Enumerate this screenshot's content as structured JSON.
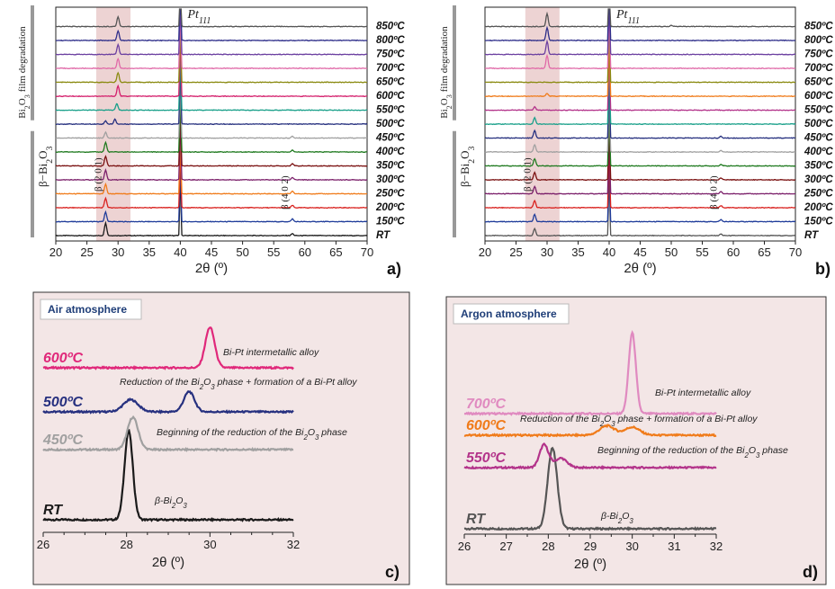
{
  "figure": {
    "panel_labels": [
      "a)",
      "b)",
      "c)",
      "d)"
    ],
    "pt_label": "Pt",
    "pt_sub": "111",
    "peak_label_201": "β (2 0 1)",
    "peak_label_402": "β (4 0 2)",
    "degradation_label": "Bi2O3 film degradation",
    "beta_phase_label": "β−Bi2O3",
    "xlabel": "2θ (º)",
    "colors": {
      "highlight": "#e8c8c8",
      "inset_bg": "#f3e6e6",
      "bar": "#999999"
    }
  },
  "chart_data": [
    {
      "id": "a",
      "type": "line",
      "xlabel": "2θ (º)",
      "xlim": [
        20,
        70
      ],
      "xticks": [
        20,
        25,
        30,
        35,
        40,
        45,
        50,
        55,
        60,
        65,
        70
      ],
      "highlight_range": [
        26.5,
        32
      ],
      "series": [
        {
          "name": "RT",
          "color": "#1a1a1a",
          "peaks": [
            [
              28.0,
              1.6
            ],
            [
              40.0,
              9
            ],
            [
              58.0,
              0.25
            ]
          ]
        },
        {
          "name": "150ºC",
          "color": "#1f3c9a",
          "peaks": [
            [
              28.0,
              1.2
            ],
            [
              40.0,
              9
            ],
            [
              58.0,
              0.35
            ]
          ]
        },
        {
          "name": "200ºC",
          "color": "#d9211e",
          "peaks": [
            [
              28.0,
              1.2
            ],
            [
              40.0,
              9
            ],
            [
              58.0,
              0.3
            ]
          ]
        },
        {
          "name": "250ºC",
          "color": "#f07b1a",
          "peaks": [
            [
              28.0,
              1.2
            ],
            [
              40.0,
              9
            ],
            [
              58.0,
              0.3
            ]
          ]
        },
        {
          "name": "300ºC",
          "color": "#7b1f6a",
          "peaks": [
            [
              28.0,
              1.2
            ],
            [
              40.0,
              9
            ],
            [
              58.0,
              0.3
            ]
          ]
        },
        {
          "name": "350ºC",
          "color": "#7a1010",
          "peaks": [
            [
              28.0,
              1.2
            ],
            [
              40.0,
              9
            ],
            [
              58.0,
              0.3
            ]
          ]
        },
        {
          "name": "400ºC",
          "color": "#1f7a1f",
          "peaks": [
            [
              28.0,
              1.2
            ],
            [
              40.0,
              9
            ],
            [
              58.0,
              0.25
            ]
          ]
        },
        {
          "name": "450ºC",
          "color": "#a0a0a0",
          "peaks": [
            [
              28.0,
              0.7
            ],
            [
              40.0,
              9
            ],
            [
              58.0,
              0.2
            ]
          ]
        },
        {
          "name": "500ºC",
          "color": "#26307f",
          "peaks": [
            [
              28.0,
              0.4
            ],
            [
              29.5,
              0.6
            ],
            [
              40.0,
              9
            ]
          ]
        },
        {
          "name": "550ºC",
          "color": "#1aa08a",
          "peaks": [
            [
              29.8,
              0.8
            ],
            [
              40.0,
              9
            ]
          ]
        },
        {
          "name": "600ºC",
          "color": "#d41f6c",
          "peaks": [
            [
              30.0,
              1.3
            ],
            [
              40.0,
              9
            ]
          ]
        },
        {
          "name": "650ºC",
          "color": "#8a8a10",
          "peaks": [
            [
              30.0,
              1.2
            ],
            [
              40.0,
              9
            ]
          ]
        },
        {
          "name": "700ºC",
          "color": "#e06aa8",
          "peaks": [
            [
              30.0,
              1.2
            ],
            [
              40.0,
              9
            ]
          ]
        },
        {
          "name": "750ºC",
          "color": "#6b3fa0",
          "peaks": [
            [
              30.0,
              1.2
            ],
            [
              40.0,
              9
            ]
          ]
        },
        {
          "name": "800ºC",
          "color": "#2e2e8a",
          "peaks": [
            [
              30.0,
              1.2
            ],
            [
              40.0,
              9
            ]
          ]
        },
        {
          "name": "850ºC",
          "color": "#555555",
          "peaks": [
            [
              30.0,
              1.2
            ],
            [
              40.0,
              9
            ]
          ]
        }
      ]
    },
    {
      "id": "b",
      "type": "line",
      "xlabel": "2θ (º)",
      "xlim": [
        20,
        70
      ],
      "xticks": [
        20,
        25,
        30,
        35,
        40,
        45,
        50,
        55,
        60,
        65,
        70
      ],
      "highlight_range": [
        26.5,
        32
      ],
      "series": [
        {
          "name": "RT",
          "color": "#555555",
          "peaks": [
            [
              28.0,
              0.9
            ],
            [
              40.0,
              9
            ],
            [
              58.0,
              0.2
            ]
          ]
        },
        {
          "name": "150ºC",
          "color": "#1f3c9a",
          "peaks": [
            [
              28.0,
              0.9
            ],
            [
              40.0,
              9
            ],
            [
              58.0,
              0.25
            ]
          ]
        },
        {
          "name": "200ºC",
          "color": "#d9211e",
          "peaks": [
            [
              28.0,
              0.9
            ],
            [
              40.0,
              9
            ],
            [
              58.0,
              0.25
            ]
          ]
        },
        {
          "name": "250ºC",
          "color": "#7b1f6a",
          "peaks": [
            [
              28.0,
              0.9
            ],
            [
              40.0,
              9
            ],
            [
              58.0,
              0.25
            ]
          ]
        },
        {
          "name": "300ºC",
          "color": "#7a1010",
          "peaks": [
            [
              28.0,
              0.9
            ],
            [
              40.0,
              9
            ],
            [
              58.0,
              0.25
            ]
          ]
        },
        {
          "name": "350ºC",
          "color": "#1f7a1f",
          "peaks": [
            [
              28.0,
              0.9
            ],
            [
              40.0,
              9
            ],
            [
              58.0,
              0.2
            ]
          ]
        },
        {
          "name": "400ºC",
          "color": "#a0a0a0",
          "peaks": [
            [
              28.0,
              0.9
            ],
            [
              40.0,
              9
            ],
            [
              58.0,
              0.2
            ]
          ]
        },
        {
          "name": "450ºC",
          "color": "#26307f",
          "peaks": [
            [
              28.0,
              0.9
            ],
            [
              40.0,
              9
            ],
            [
              58.0,
              0.2
            ]
          ]
        },
        {
          "name": "500ºC",
          "color": "#1aa08a",
          "peaks": [
            [
              28.0,
              0.8
            ],
            [
              40.0,
              9
            ]
          ]
        },
        {
          "name": "550ºC",
          "color": "#b3338a",
          "peaks": [
            [
              28.0,
              0.4
            ],
            [
              40.0,
              9
            ]
          ]
        },
        {
          "name": "600ºC",
          "color": "#f07b1a",
          "peaks": [
            [
              30.0,
              0.35
            ],
            [
              40.0,
              9
            ]
          ]
        },
        {
          "name": "650ºC",
          "color": "#8a8a10",
          "peaks": [
            [
              40.0,
              9
            ]
          ]
        },
        {
          "name": "700ºC",
          "color": "#e06aa8",
          "peaks": [
            [
              30.0,
              1.6
            ],
            [
              40.0,
              9
            ]
          ]
        },
        {
          "name": "750ºC",
          "color": "#6b3fa0",
          "peaks": [
            [
              30.0,
              1.6
            ],
            [
              40.0,
              9
            ]
          ]
        },
        {
          "name": "800ºC",
          "color": "#2e2e8a",
          "peaks": [
            [
              30.0,
              1.6
            ],
            [
              40.0,
              9
            ]
          ]
        },
        {
          "name": "850ºC",
          "color": "#555555",
          "peaks": [
            [
              30.0,
              1.6
            ],
            [
              40.0,
              9
            ],
            [
              50.0,
              0.15
            ]
          ]
        }
      ]
    },
    {
      "id": "c",
      "type": "line",
      "title": "Air atmosphere",
      "xlabel": "2θ (º)",
      "xlim": [
        26,
        32
      ],
      "xticks": [
        26,
        28,
        30,
        32
      ],
      "series": [
        {
          "name": "RT",
          "color": "#1a1a1a",
          "annotation": "β-Bi2O3",
          "peaks": [
            [
              28.05,
              3.3,
              0.14
            ]
          ]
        },
        {
          "name": "450ºC",
          "color": "#a0a0a0",
          "annotation": "Beginning of the reduction of the Bi2O3 phase",
          "peaks": [
            [
              28.15,
              1.2,
              0.18
            ]
          ]
        },
        {
          "name": "500ºC",
          "color": "#26307f",
          "annotation": "Reduction of the Bi2O3 phase + formation of a Bi-Pt alloy",
          "peaks": [
            [
              28.1,
              0.45,
              0.25
            ],
            [
              29.5,
              0.75,
              0.18
            ]
          ]
        },
        {
          "name": "600ºC",
          "color": "#e0287a",
          "annotation": "Bi-Pt intermetallic alloy",
          "peaks": [
            [
              30.0,
              1.5,
              0.16
            ]
          ]
        }
      ]
    },
    {
      "id": "d",
      "type": "line",
      "title": "Argon atmosphere",
      "xlabel": "2θ (º)",
      "xlim": [
        26,
        32
      ],
      "xticks": [
        26,
        27,
        28,
        29,
        30,
        31,
        32
      ],
      "series": [
        {
          "name": "RT",
          "color": "#555555",
          "annotation": "β-Bi2O3",
          "peaks": [
            [
              28.1,
              3.0,
              0.16
            ]
          ]
        },
        {
          "name": "550ºC",
          "color": "#b3338a",
          "annotation": "Beginning of the reduction of the Bi2O3 phase",
          "peaks": [
            [
              27.9,
              0.85,
              0.15
            ],
            [
              28.3,
              0.35,
              0.2
            ]
          ]
        },
        {
          "name": "600ºC",
          "color": "#f07b1a",
          "annotation": "Reduction of the Bi2O3 phase + formation of a Bi-Pt alloy",
          "peaks": [
            [
              29.4,
              0.35,
              0.25
            ],
            [
              30.0,
              0.3,
              0.25
            ]
          ]
        },
        {
          "name": "700ºC",
          "color": "#e08ac0",
          "annotation": "Bi-Pt intermetallic alloy",
          "peaks": [
            [
              30.0,
              3.0,
              0.12
            ]
          ]
        }
      ]
    }
  ]
}
